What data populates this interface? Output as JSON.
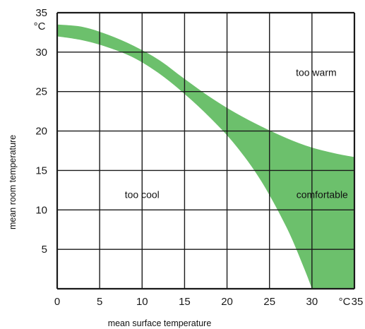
{
  "chart_data": {
    "type": "area",
    "xlabel": "mean surface temperature",
    "ylabel": "mean room temperature",
    "x_unit": "°C",
    "y_unit": "°C",
    "xlim": [
      0,
      35
    ],
    "ylim": [
      0,
      35
    ],
    "x_ticks": [
      0,
      5,
      10,
      15,
      20,
      25,
      30,
      35
    ],
    "y_ticks": [
      5,
      10,
      15,
      20,
      25,
      30,
      35
    ],
    "grid": true,
    "fill_color": "#6cc06c",
    "band": {
      "upper": [
        [
          0,
          33.5
        ],
        [
          3,
          33.2
        ],
        [
          6,
          32.2
        ],
        [
          9,
          30.8
        ],
        [
          12,
          29.0
        ],
        [
          15,
          26.6
        ],
        [
          18,
          24.3
        ],
        [
          21,
          22.3
        ],
        [
          24,
          20.6
        ],
        [
          27,
          19.1
        ],
        [
          30,
          17.9
        ],
        [
          33,
          17.1
        ],
        [
          35,
          16.7
        ]
      ],
      "lower": [
        [
          0,
          32.0
        ],
        [
          3,
          31.5
        ],
        [
          6,
          30.6
        ],
        [
          9,
          29.3
        ],
        [
          12,
          27.3
        ],
        [
          15,
          24.7
        ],
        [
          18,
          21.7
        ],
        [
          21,
          18.2
        ],
        [
          24,
          13.7
        ],
        [
          27,
          7.8
        ],
        [
          29,
          2.8
        ],
        [
          30,
          0
        ]
      ]
    },
    "annotations": [
      {
        "text": "too warm",
        "x": 30.5,
        "y": 27
      },
      {
        "text": "too cool",
        "x": 10,
        "y": 11.5
      },
      {
        "text": "comfortable",
        "x": 31.2,
        "y": 11.5
      }
    ]
  }
}
